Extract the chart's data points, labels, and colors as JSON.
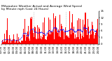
{
  "title": "Milwaukee Weather Actual and Average Wind Speed\nby Minute mph (Last 24 Hours)",
  "n_points": 1440,
  "y_max": 15,
  "y_min": 0,
  "yticks": [
    0,
    3,
    6,
    9,
    12,
    15
  ],
  "ytick_labels": [
    "0",
    "3",
    "6",
    "9",
    "12",
    "15"
  ],
  "bar_color": "#FF0000",
  "line_color": "#0000FF",
  "background_color": "#FFFFFF",
  "plot_bg_color": "#FFFFFF",
  "grid_color": "#888888",
  "title_fontsize": 3.2,
  "tick_fontsize": 2.8,
  "seed": 99
}
